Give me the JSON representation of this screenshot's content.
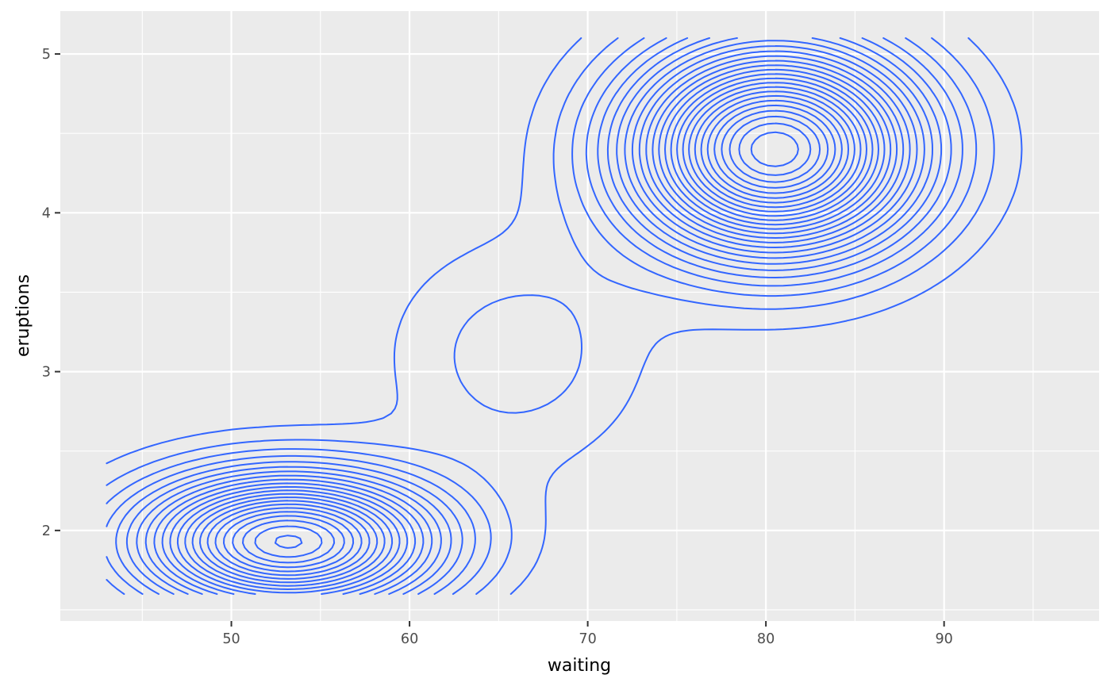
{
  "chart_data": {
    "type": "contour",
    "title": "",
    "xlabel": "waiting",
    "ylabel": "eruptions",
    "xlim": [
      40.4,
      98.7
    ],
    "ylim": [
      1.43,
      5.27
    ],
    "x_ticks": [
      50,
      60,
      70,
      80,
      90
    ],
    "y_ticks": [
      2,
      3,
      4,
      5
    ],
    "x_tick_labels": [
      "50",
      "60",
      "70",
      "80",
      "90"
    ],
    "y_tick_labels": [
      "2",
      "3",
      "4",
      "5"
    ],
    "grid": true,
    "data_range": {
      "x": [
        43,
        96
      ],
      "y": [
        1.6,
        5.1
      ]
    },
    "density_peaks": [
      {
        "x": 53.2,
        "y": 1.93,
        "sx": 5.6,
        "sy": 0.29,
        "weight": 0.34
      },
      {
        "x": 80.5,
        "y": 4.4,
        "sx": 5.4,
        "sy": 0.44,
        "weight": 0.6
      },
      {
        "x": 66,
        "y": 3.1,
        "sx": 5,
        "sy": 0.5,
        "weight": 0.06
      }
    ],
    "contour_level_step": 0.0015,
    "line_color": "#3366FF",
    "panel_background": "#EBEBEB",
    "grid_color": "#FFFFFF"
  }
}
